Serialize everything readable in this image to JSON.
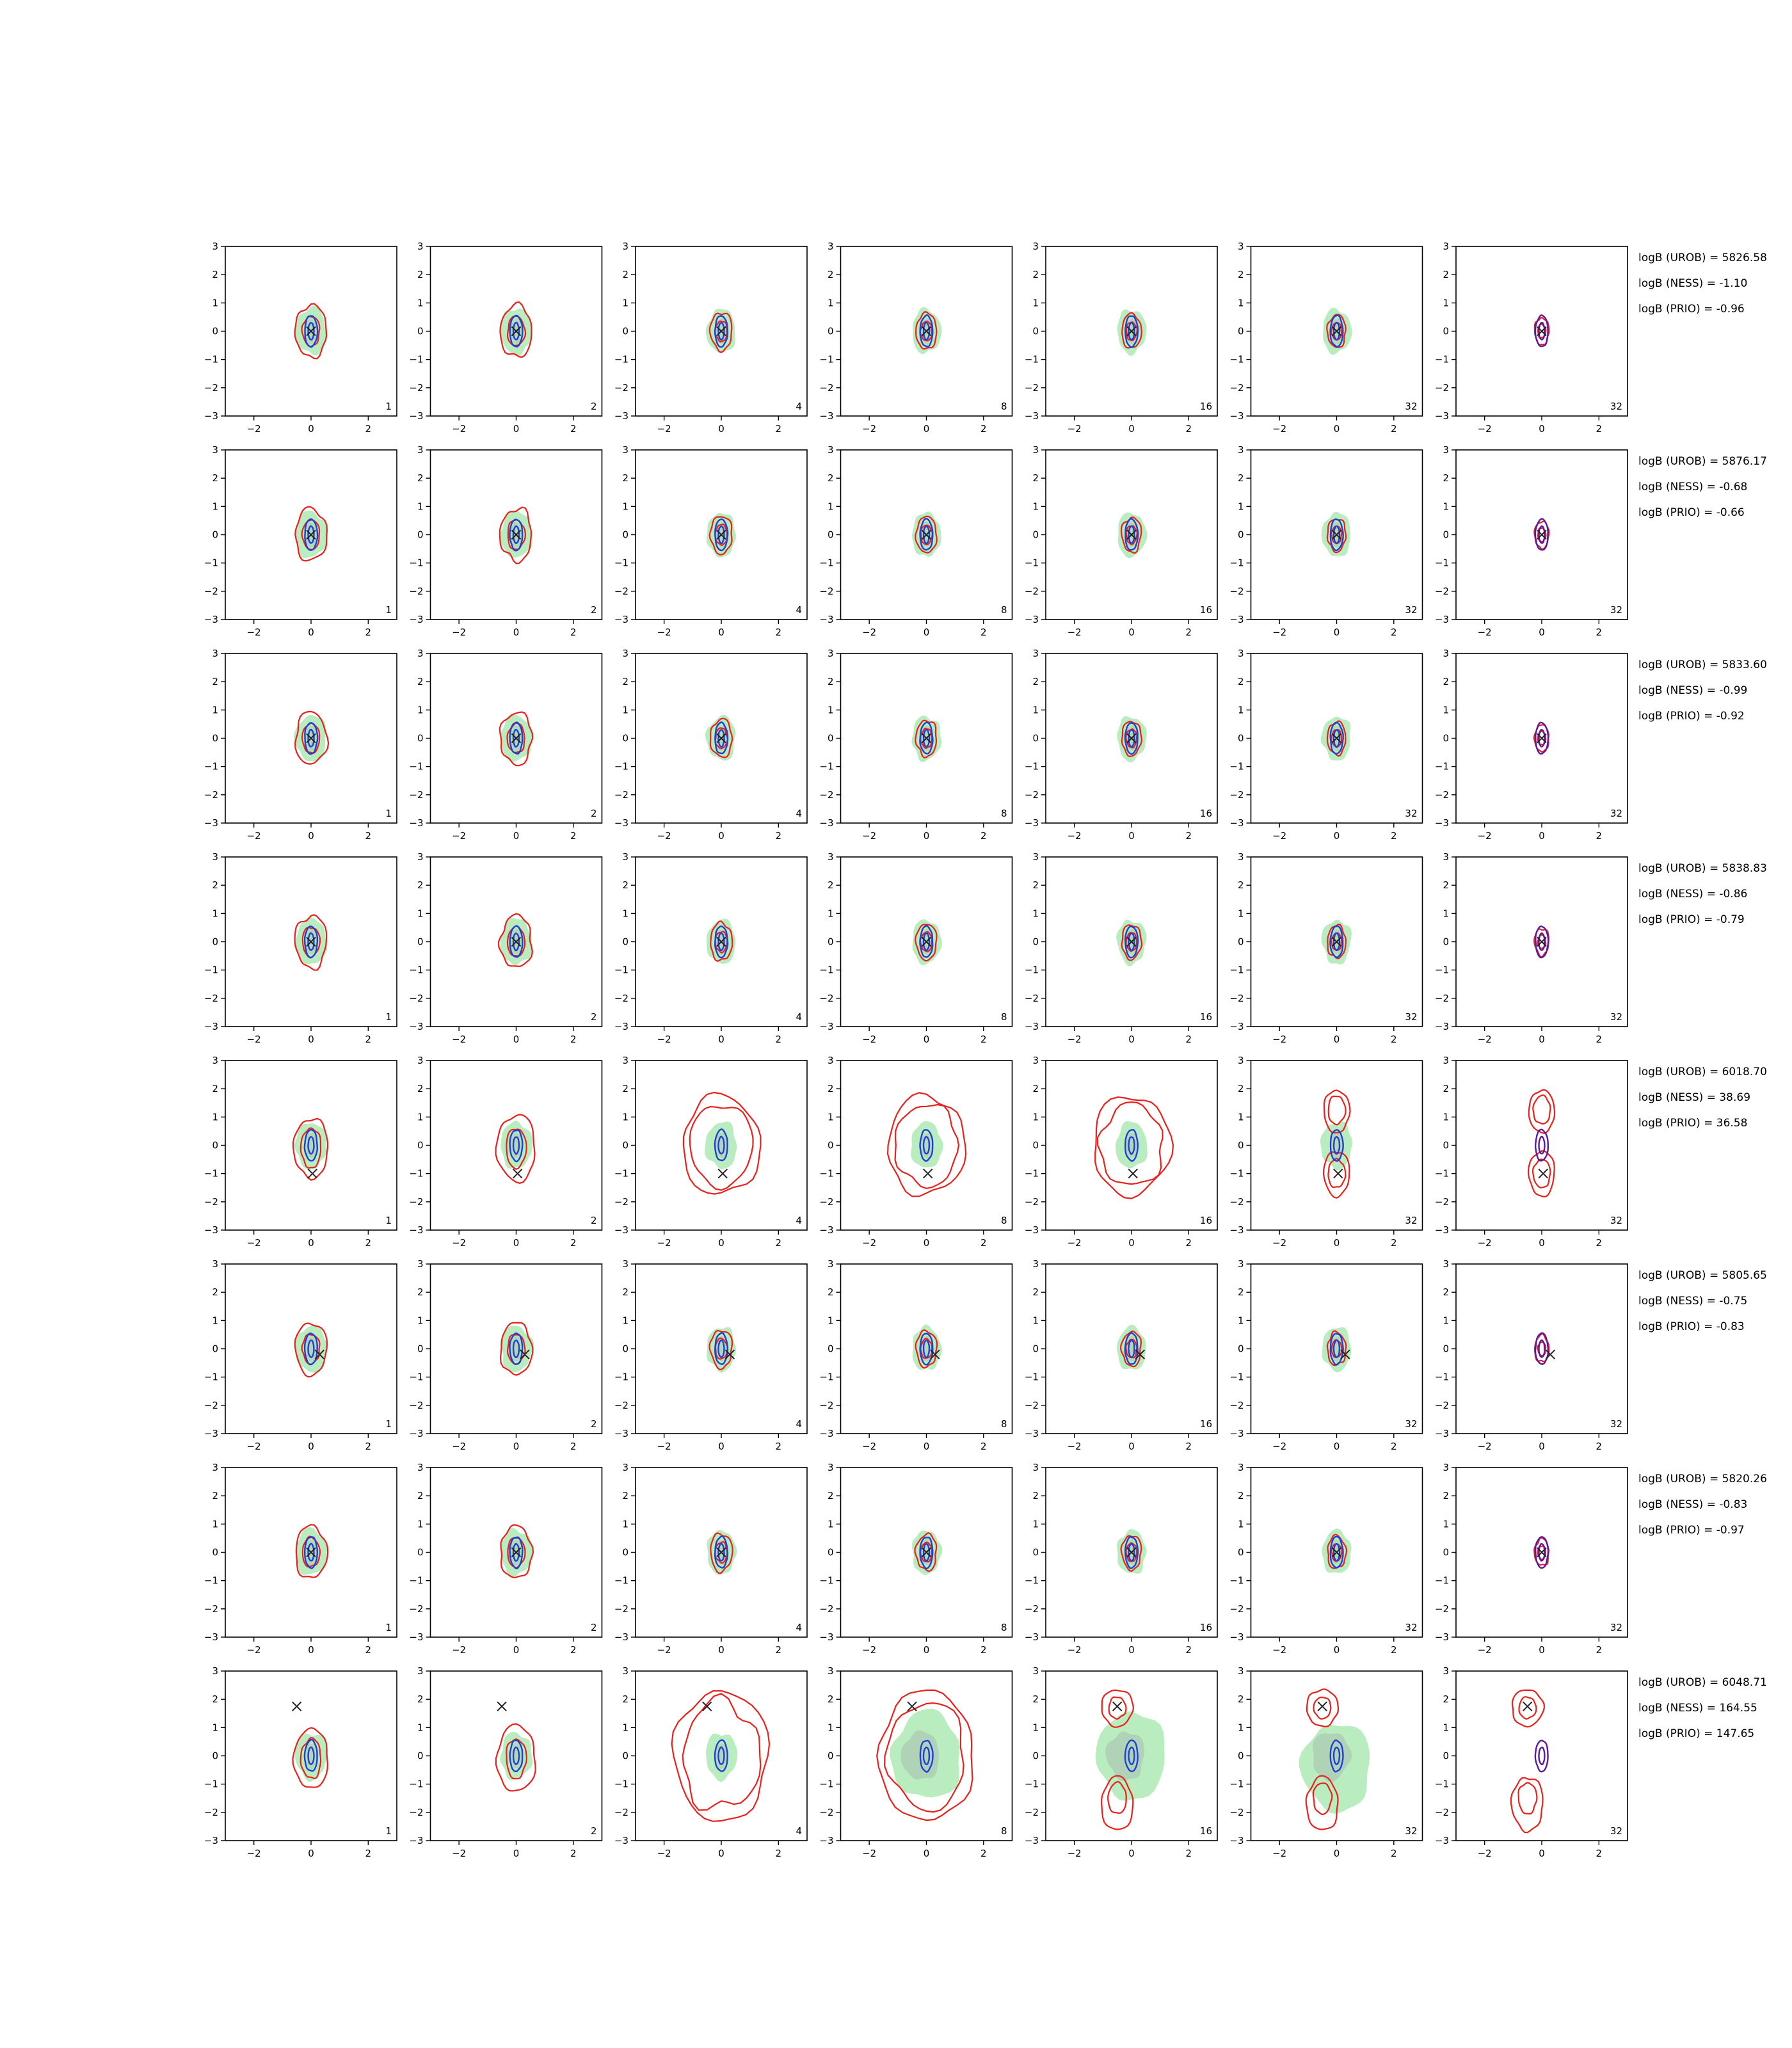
{
  "chart_data": {
    "type": "contour-grid",
    "title": "",
    "rows": 8,
    "columns": 7,
    "xlim": [
      -3,
      3
    ],
    "ylim": [
      -3,
      3
    ],
    "xticks": [
      -2,
      0,
      2
    ],
    "yticks": [
      -3,
      -2,
      -1,
      0,
      1,
      2,
      3
    ],
    "column_labels": [
      "1",
      "2",
      "4",
      "8",
      "16",
      "32",
      "32"
    ],
    "colors": {
      "fill": "#b9ecbf",
      "fill_dark": "#a6b5ad",
      "red_contour": "#e8211d",
      "blue_contour": "#1f3fd6",
      "purple_contour": "#5a1aa0",
      "marker": "#222222"
    },
    "rows_data": [
      {
        "marker": [
          0.0,
          0.0
        ],
        "mode": "simple",
        "annotations": [
          "logB (UROB) = 5826.58",
          "logB (NESS) = -1.10",
          "logB (PRIO) = -0.96"
        ]
      },
      {
        "marker": [
          0.0,
          0.0
        ],
        "mode": "simple",
        "annotations": [
          "logB (UROB) = 5876.17",
          "logB (NESS) = -0.68",
          "logB (PRIO) = -0.66"
        ]
      },
      {
        "marker": [
          0.0,
          0.0
        ],
        "mode": "simple",
        "annotations": [
          "logB (UROB) = 5833.60",
          "logB (NESS) = -0.99",
          "logB (PRIO) = -0.92"
        ]
      },
      {
        "marker": [
          0.0,
          0.0
        ],
        "mode": "simple",
        "annotations": [
          "logB (UROB) = 5838.83",
          "logB (NESS) = -0.86",
          "logB (PRIO) = -0.79"
        ]
      },
      {
        "marker": [
          0.05,
          -1.0
        ],
        "mode": "split-vertical",
        "annotations": [
          "logB (UROB) = 6018.70",
          "logB (NESS) = 38.69",
          "logB (PRIO) = 36.58"
        ]
      },
      {
        "marker": [
          0.3,
          -0.2
        ],
        "mode": "simple",
        "annotations": [
          "logB (UROB) = 5805.65",
          "logB (NESS) = -0.75",
          "logB (PRIO) = -0.83"
        ]
      },
      {
        "marker": [
          0.0,
          0.0
        ],
        "mode": "simple",
        "annotations": [
          "logB (UROB) = 5820.26",
          "logB (NESS) = -0.83",
          "logB (PRIO) = -0.97"
        ]
      },
      {
        "marker": [
          -0.5,
          1.75
        ],
        "mode": "split-offset",
        "annotations": [
          "logB (UROB) = 6048.71",
          "logB (NESS) = 164.55",
          "logB (PRIO) = 147.65"
        ]
      }
    ]
  }
}
